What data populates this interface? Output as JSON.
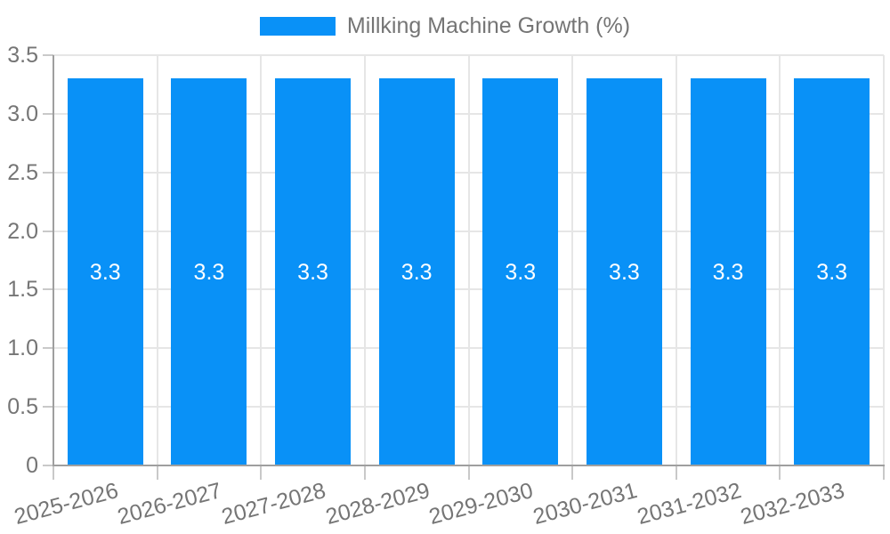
{
  "legend": {
    "label": "Millking Machine Growth (%)"
  },
  "chart_data": {
    "type": "bar",
    "title": "Millking Machine Growth (%)",
    "categories": [
      "2025-2026",
      "2026-2027",
      "2027-2028",
      "2028-2029",
      "2029-2030",
      "2030-2031",
      "2031-2032",
      "2032-2033"
    ],
    "values": [
      3.3,
      3.3,
      3.3,
      3.3,
      3.3,
      3.3,
      3.3,
      3.3
    ],
    "value_labels": [
      "3.3",
      "3.3",
      "3.3",
      "3.3",
      "3.3",
      "3.3",
      "3.3",
      "3.3"
    ],
    "xlabel": "",
    "ylabel": "",
    "ylim": [
      0,
      3.5
    ],
    "yticks": [
      0,
      0.5,
      1,
      1.5,
      2,
      2.5,
      3,
      3.5
    ],
    "ytick_labels": [
      "0",
      "0.5",
      "1.0",
      "1.5",
      "2.0",
      "2.5",
      "3.0",
      "3.5"
    ],
    "grid": true,
    "legend_position": "top",
    "colors": {
      "bar": "#0991f7",
      "grid": "#e6e6e6",
      "axis": "#9f9f9f",
      "tick": "#c9c9c9",
      "text": "#757575",
      "bar_label": "#ffffff"
    }
  }
}
